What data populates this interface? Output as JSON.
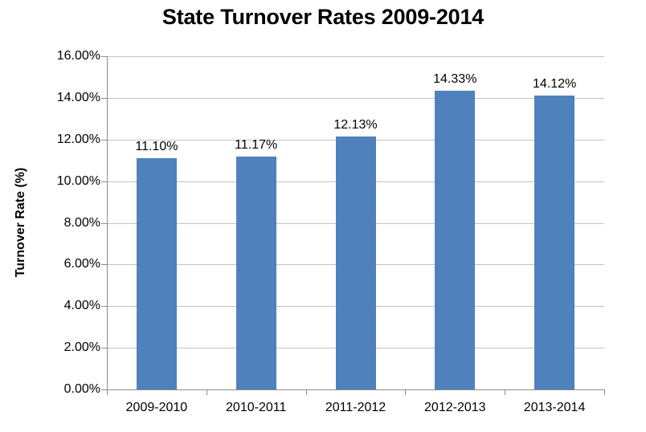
{
  "chart_data": {
    "type": "bar",
    "title": "State Turnover Rates 2009-2014",
    "categories": [
      "2009-2010",
      "2010-2011",
      "2011-2012",
      "2012-2013",
      "2013-2014"
    ],
    "values": [
      11.1,
      11.17,
      12.13,
      14.33,
      14.12
    ],
    "data_labels": [
      "11.10%",
      "11.17%",
      "12.13%",
      "14.33%",
      "14.12%"
    ],
    "xlabel": "",
    "ylabel": "Turnover Rate (%)",
    "ylim": [
      0,
      16
    ],
    "ytick_step": 2,
    "ytick_labels": [
      "0.00%",
      "2.00%",
      "4.00%",
      "6.00%",
      "8.00%",
      "10.00%",
      "12.00%",
      "14.00%",
      "16.00%"
    ],
    "grid": true,
    "legend": "none",
    "colors": {
      "bar": "#4f81bd",
      "gridline": "#c3c3c3",
      "axis": "#8c8c8c",
      "text": "#000000",
      "background": "#ffffff"
    }
  }
}
